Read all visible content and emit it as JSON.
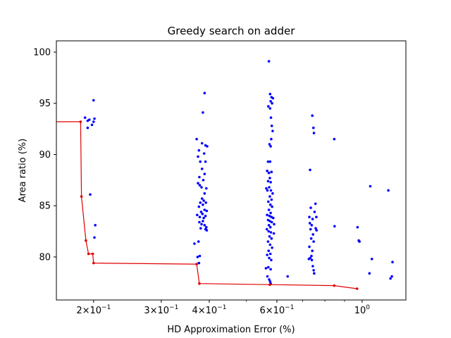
{
  "chart_data": {
    "type": "scatter",
    "title": "Greedy search on adder",
    "xlabel": "HD Approximation Error (%)",
    "ylabel": "Area ratio (%)",
    "x_scale": "log",
    "xlim": [
      0.16,
      1.3
    ],
    "ylim": [
      75.8,
      101.1
    ],
    "grid": false,
    "y_ticks": [
      80,
      85,
      90,
      95,
      100
    ],
    "x_ticks": [
      {
        "value": 0.2,
        "base": "2×10",
        "exp": "−1"
      },
      {
        "value": 0.3,
        "base": "3×10",
        "exp": "−1"
      },
      {
        "value": 0.4,
        "base": "4×10",
        "exp": "−1"
      },
      {
        "value": 0.6,
        "base": "6×10",
        "exp": "−1"
      },
      {
        "value": 1.0,
        "base": "10",
        "exp": "0"
      }
    ],
    "x_minor_ticks": [
      0.5,
      0.7,
      0.8,
      0.9
    ],
    "series": [
      {
        "color": "#0000ff",
        "mode": "markers",
        "points": [
          [
            0.19,
            93.6
          ],
          [
            0.193,
            93.3
          ],
          [
            0.195,
            93.4
          ],
          [
            0.193,
            92.6
          ],
          [
            0.198,
            92.9
          ],
          [
            0.2,
            93.2
          ],
          [
            0.201,
            93.5
          ],
          [
            0.2,
            95.3
          ],
          [
            0.196,
            86.1
          ],
          [
            0.202,
            83.1
          ],
          [
            0.201,
            81.9
          ],
          [
            0.371,
            91.5
          ],
          [
            0.376,
            90.4
          ],
          [
            0.383,
            91.1
          ],
          [
            0.388,
            90.1
          ],
          [
            0.391,
            90.9
          ],
          [
            0.395,
            90.8
          ],
          [
            0.389,
            96.0
          ],
          [
            0.385,
            94.1
          ],
          [
            0.374,
            89.8
          ],
          [
            0.379,
            89.3
          ],
          [
            0.391,
            89.3
          ],
          [
            0.383,
            88.6
          ],
          [
            0.389,
            88.1
          ],
          [
            0.377,
            87.8
          ],
          [
            0.386,
            87.5
          ],
          [
            0.374,
            87.2
          ],
          [
            0.378,
            87.0
          ],
          [
            0.382,
            86.8
          ],
          [
            0.393,
            86.7
          ],
          [
            0.389,
            86.2
          ],
          [
            0.383,
            85.7
          ],
          [
            0.387,
            85.5
          ],
          [
            0.379,
            85.3
          ],
          [
            0.385,
            85.1
          ],
          [
            0.392,
            85.3
          ],
          [
            0.376,
            84.9
          ],
          [
            0.389,
            84.6
          ],
          [
            0.381,
            84.4
          ],
          [
            0.384,
            84.2
          ],
          [
            0.394,
            84.5
          ],
          [
            0.372,
            84.1
          ],
          [
            0.378,
            83.9
          ],
          [
            0.387,
            83.8
          ],
          [
            0.391,
            84.0
          ],
          [
            0.385,
            83.5
          ],
          [
            0.377,
            83.4
          ],
          [
            0.382,
            83.2
          ],
          [
            0.389,
            83.1
          ],
          [
            0.393,
            82.9
          ],
          [
            0.38,
            82.8
          ],
          [
            0.391,
            82.7
          ],
          [
            0.394,
            82.6
          ],
          [
            0.366,
            81.3
          ],
          [
            0.375,
            81.5
          ],
          [
            0.373,
            80.0
          ],
          [
            0.378,
            80.1
          ],
          [
            0.376,
            79.4
          ],
          [
            0.572,
            99.1
          ],
          [
            0.576,
            95.9
          ],
          [
            0.581,
            95.6
          ],
          [
            0.586,
            95.5
          ],
          [
            0.578,
            95.2
          ],
          [
            0.583,
            95.0
          ],
          [
            0.57,
            94.7
          ],
          [
            0.576,
            94.5
          ],
          [
            0.579,
            93.6
          ],
          [
            0.582,
            92.8
          ],
          [
            0.585,
            92.3
          ],
          [
            0.58,
            91.5
          ],
          [
            0.574,
            91.0
          ],
          [
            0.578,
            90.8
          ],
          [
            0.569,
            89.3
          ],
          [
            0.576,
            89.3
          ],
          [
            0.566,
            88.4
          ],
          [
            0.572,
            88.2
          ],
          [
            0.581,
            88.3
          ],
          [
            0.575,
            87.7
          ],
          [
            0.569,
            87.4
          ],
          [
            0.578,
            87.3
          ],
          [
            0.563,
            86.7
          ],
          [
            0.573,
            86.8
          ],
          [
            0.567,
            86.5
          ],
          [
            0.579,
            86.5
          ],
          [
            0.585,
            86.2
          ],
          [
            0.575,
            85.9
          ],
          [
            0.581,
            85.6
          ],
          [
            0.57,
            85.4
          ],
          [
            0.577,
            85.1
          ],
          [
            0.583,
            84.9
          ],
          [
            0.572,
            84.6
          ],
          [
            0.578,
            84.3
          ],
          [
            0.566,
            84.1
          ],
          [
            0.574,
            84.0
          ],
          [
            0.581,
            83.9
          ],
          [
            0.587,
            83.8
          ],
          [
            0.569,
            83.6
          ],
          [
            0.575,
            83.5
          ],
          [
            0.582,
            83.4
          ],
          [
            0.59,
            83.2
          ],
          [
            0.572,
            83.1
          ],
          [
            0.577,
            82.9
          ],
          [
            0.565,
            82.7
          ],
          [
            0.571,
            82.5
          ],
          [
            0.579,
            82.4
          ],
          [
            0.589,
            82.3
          ],
          [
            0.574,
            82.0
          ],
          [
            0.581,
            81.8
          ],
          [
            0.569,
            81.5
          ],
          [
            0.576,
            81.2
          ],
          [
            0.583,
            80.9
          ],
          [
            0.571,
            80.6
          ],
          [
            0.577,
            80.3
          ],
          [
            0.566,
            80.2
          ],
          [
            0.573,
            79.9
          ],
          [
            0.58,
            79.7
          ],
          [
            0.562,
            78.9
          ],
          [
            0.57,
            79.0
          ],
          [
            0.578,
            78.8
          ],
          [
            0.567,
            78.1
          ],
          [
            0.573,
            77.8
          ],
          [
            0.576,
            77.6
          ],
          [
            0.578,
            77.4
          ],
          [
            0.64,
            78.1
          ],
          [
            0.742,
            93.8
          ],
          [
            0.747,
            92.6
          ],
          [
            0.749,
            92.1
          ],
          [
            0.732,
            88.5
          ],
          [
            0.756,
            85.2
          ],
          [
            0.735,
            84.8
          ],
          [
            0.752,
            84.4
          ],
          [
            0.729,
            83.9
          ],
          [
            0.743,
            83.7
          ],
          [
            0.76,
            83.9
          ],
          [
            0.731,
            83.3
          ],
          [
            0.739,
            83.1
          ],
          [
            0.757,
            82.8
          ],
          [
            0.761,
            82.6
          ],
          [
            0.734,
            82.7
          ],
          [
            0.745,
            82.2
          ],
          [
            0.737,
            81.8
          ],
          [
            0.748,
            81.5
          ],
          [
            0.729,
            81.0
          ],
          [
            0.742,
            80.6
          ],
          [
            0.738,
            80.1
          ],
          [
            0.733,
            79.9
          ],
          [
            0.727,
            79.8
          ],
          [
            0.74,
            79.7
          ],
          [
            0.744,
            79.1
          ],
          [
            0.748,
            78.7
          ],
          [
            0.75,
            78.4
          ],
          [
            0.846,
            91.5
          ],
          [
            0.848,
            83.0
          ],
          [
            0.973,
            82.9
          ],
          [
            0.98,
            81.6
          ],
          [
            0.984,
            81.5
          ],
          [
            1.05,
            86.9
          ],
          [
            1.045,
            78.4
          ],
          [
            1.06,
            79.8
          ],
          [
            1.17,
            86.5
          ],
          [
            1.2,
            79.5
          ],
          [
            1.185,
            77.9
          ],
          [
            1.195,
            78.1
          ]
        ]
      },
      {
        "color": "#e00000",
        "mode": "line+markers",
        "points": [
          [
            0.16,
            93.2
          ],
          [
            0.185,
            93.2
          ],
          [
            0.186,
            85.9
          ],
          [
            0.191,
            81.6
          ],
          [
            0.194,
            80.3
          ],
          [
            0.199,
            80.3
          ],
          [
            0.2,
            79.4
          ],
          [
            0.371,
            79.3
          ],
          [
            0.377,
            77.4
          ],
          [
            0.575,
            77.3
          ],
          [
            0.846,
            77.2
          ],
          [
            0.97,
            76.9
          ]
        ]
      }
    ]
  }
}
